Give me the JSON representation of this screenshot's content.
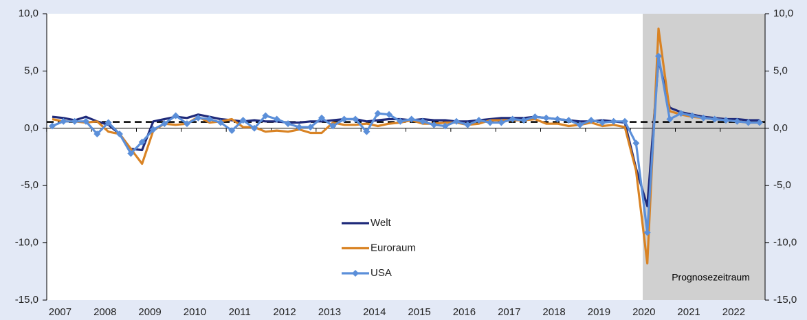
{
  "chart_data": {
    "type": "line",
    "categories": [
      "2007",
      null,
      null,
      null,
      "2008",
      null,
      null,
      null,
      "2009",
      null,
      null,
      null,
      "2010",
      null,
      null,
      null,
      "2011",
      null,
      null,
      null,
      "2012",
      null,
      null,
      null,
      "2013",
      null,
      null,
      null,
      "2014",
      null,
      null,
      null,
      "2015",
      null,
      null,
      null,
      "2016",
      null,
      null,
      null,
      "2017",
      null,
      null,
      null,
      "2018",
      null,
      null,
      null,
      "2019",
      null,
      null,
      null,
      "2020",
      null,
      null,
      null,
      "2021",
      null,
      null,
      null,
      "2022",
      null,
      null,
      null
    ],
    "series": [
      {
        "name": "Welt",
        "color": "#1f2a7a",
        "values": [
          1.0,
          0.9,
          0.7,
          1.0,
          0.6,
          0.3,
          -0.5,
          -1.8,
          -1.9,
          0.6,
          0.8,
          1.0,
          0.9,
          1.2,
          1.0,
          0.8,
          0.7,
          0.6,
          0.7,
          0.6,
          0.6,
          0.5,
          0.5,
          0.6,
          0.6,
          0.7,
          0.8,
          0.8,
          0.6,
          0.7,
          0.8,
          0.8,
          0.7,
          0.8,
          0.7,
          0.7,
          0.6,
          0.6,
          0.7,
          0.8,
          0.9,
          0.9,
          0.9,
          1.0,
          0.9,
          0.8,
          0.7,
          0.6,
          0.6,
          0.7,
          0.6,
          0.5,
          -3.5,
          -6.8,
          6.0,
          1.8,
          1.4,
          1.2,
          1.0,
          0.9,
          0.8,
          0.8,
          0.7,
          0.7
        ]
      },
      {
        "name": "Euroraum",
        "color": "#d98324",
        "values": [
          0.8,
          0.6,
          0.6,
          0.5,
          0.6,
          -0.3,
          -0.5,
          -1.8,
          -3.1,
          -0.2,
          0.4,
          0.3,
          0.4,
          1.0,
          0.5,
          0.6,
          0.8,
          0.1,
          0.1,
          -0.3,
          -0.2,
          -0.3,
          -0.1,
          -0.4,
          -0.4,
          0.5,
          0.3,
          0.3,
          0.4,
          0.2,
          0.4,
          0.5,
          0.7,
          0.4,
          0.4,
          0.5,
          0.5,
          0.3,
          0.4,
          0.7,
          0.7,
          0.7,
          0.7,
          0.8,
          0.4,
          0.4,
          0.2,
          0.3,
          0.5,
          0.2,
          0.3,
          0.1,
          -3.7,
          -11.8,
          8.7,
          1.5,
          1.2,
          1.0,
          0.9,
          0.8,
          0.7,
          0.6,
          0.5,
          0.5
        ]
      },
      {
        "name": "USA",
        "color": "#5b8fd9",
        "marker": "diamond",
        "values": [
          0.2,
          0.6,
          0.6,
          0.6,
          -0.5,
          0.5,
          -0.5,
          -2.2,
          -1.2,
          -0.1,
          0.4,
          1.1,
          0.4,
          0.9,
          0.8,
          0.5,
          -0.2,
          0.7,
          0.0,
          1.1,
          0.8,
          0.4,
          0.1,
          0.1,
          0.9,
          0.2,
          0.8,
          0.8,
          -0.3,
          1.3,
          1.2,
          0.6,
          0.8,
          0.6,
          0.3,
          0.2,
          0.6,
          0.3,
          0.7,
          0.5,
          0.5,
          0.8,
          0.7,
          1.0,
          0.9,
          0.8,
          0.7,
          0.3,
          0.7,
          0.5,
          0.6,
          0.6,
          -1.3,
          -9.1,
          6.3,
          0.8,
          1.3,
          1.1,
          0.9,
          0.8,
          0.7,
          0.6,
          0.5,
          0.5
        ]
      }
    ],
    "reference_line": 0.55,
    "annotation": "Prognosezeitraum",
    "ylim": [
      -15,
      10
    ],
    "yticks": [
      {
        "value": -15,
        "label": "-15,0"
      },
      {
        "value": -10,
        "label": "-10,0"
      },
      {
        "value": -5,
        "label": "-5,0"
      },
      {
        "value": 0,
        "label": "0,0"
      },
      {
        "value": 5,
        "label": "5,0"
      },
      {
        "value": 10,
        "label": "10,0"
      }
    ],
    "y2lim": [
      -15,
      10
    ],
    "y2ticks": [
      {
        "value": -15,
        "label": "-15,0"
      },
      {
        "value": -10,
        "label": "-10,0"
      },
      {
        "value": -5,
        "label": "-5,0"
      },
      {
        "value": 0,
        "label": "0,0"
      },
      {
        "value": 5,
        "label": "5,0"
      },
      {
        "value": 10,
        "label": "10,0"
      }
    ]
  }
}
